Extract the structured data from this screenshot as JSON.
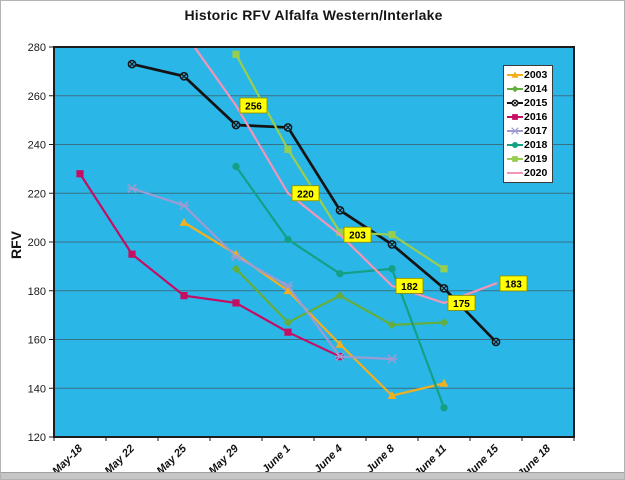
{
  "title": "Historic RFV Alfalfa Western/Interlake",
  "chart_data": {
    "type": "line",
    "title": "Historic RFV Alfalfa Western/Interlake",
    "xlabel": "",
    "ylabel": "RFV",
    "ylim": [
      120,
      280
    ],
    "ytick_step": 20,
    "yticks": [
      120,
      140,
      160,
      180,
      200,
      220,
      240,
      260,
      280
    ],
    "grid": true,
    "plot_bg": "#2BB6E8",
    "grid_color": "#3A7084",
    "legend_position": "top-right-inside",
    "categories": [
      "May-18",
      "May 22",
      "May 25",
      "May 29",
      "June 1",
      "June 4",
      "June 8",
      "June 11",
      "June 15",
      "June 18"
    ],
    "series": [
      {
        "name": "2003",
        "color": "#F0B020",
        "marker": "triangle",
        "values": [
          null,
          null,
          208,
          195,
          180,
          158,
          137,
          142,
          null,
          null
        ]
      },
      {
        "name": "2014",
        "color": "#63AE3C",
        "marker": "diamond",
        "values": [
          null,
          null,
          null,
          189,
          167,
          178,
          166,
          167,
          null,
          null
        ]
      },
      {
        "name": "2015",
        "color": "#141414",
        "marker": "circle-x",
        "values": [
          null,
          273,
          268,
          248,
          247,
          213,
          199,
          181,
          159,
          null
        ]
      },
      {
        "name": "2016",
        "color": "#C50E62",
        "marker": "square",
        "values": [
          228,
          195,
          178,
          175,
          163,
          153,
          null,
          null,
          null,
          null
        ]
      },
      {
        "name": "2017",
        "color": "#9C9CD2",
        "marker": "asterisk",
        "values": [
          null,
          222,
          215,
          194,
          182,
          153,
          152,
          null,
          null,
          null
        ]
      },
      {
        "name": "2018",
        "color": "#14A085",
        "marker": "circle",
        "values": [
          null,
          null,
          null,
          231,
          201,
          187,
          189,
          132,
          null,
          null
        ]
      },
      {
        "name": "2019",
        "color": "#97CE50",
        "marker": "square",
        "values": [
          null,
          null,
          null,
          277,
          238,
          204,
          203,
          189,
          null,
          null
        ]
      },
      {
        "name": "2020",
        "color": "#F295B7",
        "marker": "none",
        "values": [
          null,
          null,
          286,
          256,
          220,
          203,
          182,
          175,
          183,
          null
        ],
        "data_labels": [
          null,
          null,
          null,
          256,
          220,
          203,
          182,
          175,
          183,
          null
        ],
        "label_bg": "#FFFF00"
      }
    ]
  }
}
